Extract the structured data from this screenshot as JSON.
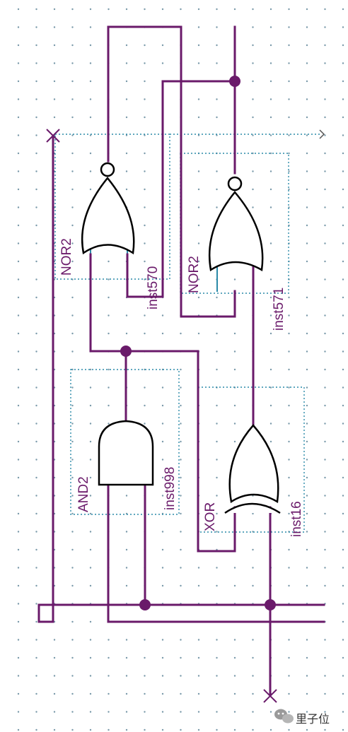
{
  "colors": {
    "wire": "#6a1a6a",
    "pin": "#2a8aa8",
    "gate_outline": "#000000",
    "grid_dot": "#7a9aaa"
  },
  "gates": [
    {
      "type_label": "NOR2",
      "instance_label": "inst570"
    },
    {
      "type_label": "NOR2",
      "instance_label": "inst571"
    },
    {
      "type_label": "AND2",
      "instance_label": "inst998"
    },
    {
      "type_label": "XOR",
      "instance_label": "inst16"
    }
  ],
  "watermark": {
    "icon": "wechat-icon",
    "text": "里子位"
  }
}
